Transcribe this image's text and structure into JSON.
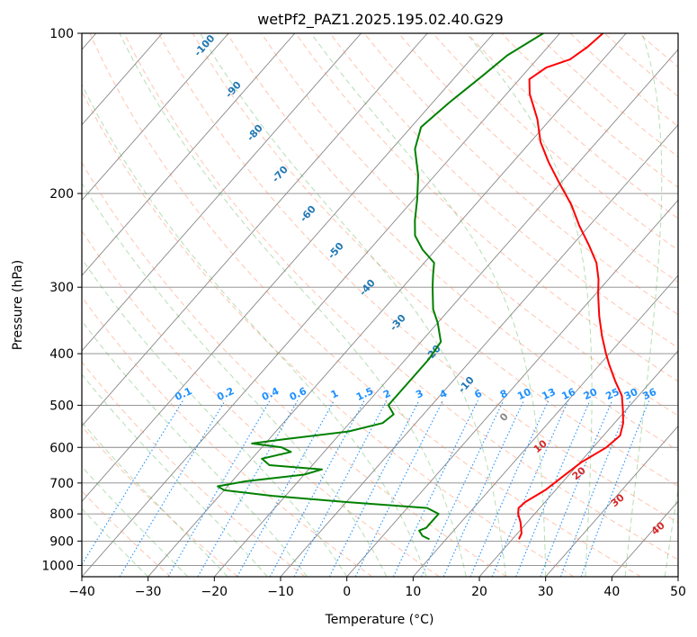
{
  "chart_data": {
    "type": "line",
    "subtype": "skew-t log-p diagram",
    "title": "wetPf2_PAZ1.2025.195.02.40.G29",
    "xlabel": "Temperature (°C)",
    "ylabel": "Pressure (hPa)",
    "xlim": [
      -40,
      50
    ],
    "ylim": [
      1050,
      100
    ],
    "y_scale": "log",
    "x_ticks": [
      -40,
      -30,
      -20,
      -10,
      0,
      10,
      20,
      30,
      40,
      50
    ],
    "y_ticks": [
      100,
      200,
      300,
      400,
      500,
      600,
      700,
      800,
      900,
      1000
    ],
    "x_tick_labels": [
      "−40",
      "−30",
      "−20",
      "−10",
      "0",
      "10",
      "20",
      "30",
      "40",
      "50"
    ],
    "y_tick_labels": [
      "100",
      "200",
      "300",
      "400",
      "500",
      "600",
      "700",
      "800",
      "900",
      "1000"
    ],
    "series": [
      {
        "role": "temperature",
        "color": "#ff0000",
        "points": [
          {
            "p": 893,
            "t": 21.0
          },
          {
            "p": 870,
            "t": 20.6
          },
          {
            "p": 830,
            "t": 19.0
          },
          {
            "p": 800,
            "t": 17.5
          },
          {
            "p": 780,
            "t": 16.8
          },
          {
            "p": 760,
            "t": 17.0
          },
          {
            "p": 720,
            "t": 18.5
          },
          {
            "p": 680,
            "t": 19.3
          },
          {
            "p": 640,
            "t": 20.2
          },
          {
            "p": 600,
            "t": 22.0
          },
          {
            "p": 570,
            "t": 22.5
          },
          {
            "p": 540,
            "t": 21.3
          },
          {
            "p": 510,
            "t": 19.5
          },
          {
            "p": 480,
            "t": 17.5
          },
          {
            "p": 450,
            "t": 14.5
          },
          {
            "p": 420,
            "t": 11.5
          },
          {
            "p": 400,
            "t": 9.5
          },
          {
            "p": 370,
            "t": 6.5
          },
          {
            "p": 340,
            "t": 3.5
          },
          {
            "p": 310,
            "t": 0.5
          },
          {
            "p": 290,
            "t": -1.5
          },
          {
            "p": 270,
            "t": -4.0
          },
          {
            "p": 250,
            "t": -7.5
          },
          {
            "p": 230,
            "t": -11.5
          },
          {
            "p": 210,
            "t": -15.5
          },
          {
            "p": 190,
            "t": -20.5
          },
          {
            "p": 175,
            "t": -24.5
          },
          {
            "p": 160,
            "t": -28.5
          },
          {
            "p": 145,
            "t": -32.0
          },
          {
            "p": 130,
            "t": -36.5
          },
          {
            "p": 122,
            "t": -38.5
          },
          {
            "p": 116,
            "t": -37.5
          },
          {
            "p": 112,
            "t": -35.0
          },
          {
            "p": 106,
            "t": -34.0
          },
          {
            "p": 100,
            "t": -33.5
          }
        ]
      },
      {
        "role": "dewpoint",
        "color": "#008000",
        "points": [
          {
            "p": 893,
            "t": 7.5
          },
          {
            "p": 880,
            "t": 6.0
          },
          {
            "p": 860,
            "t": 4.8
          },
          {
            "p": 850,
            "t": 5.5
          },
          {
            "p": 830,
            "t": 5.5
          },
          {
            "p": 800,
            "t": 5.5
          },
          {
            "p": 780,
            "t": 3.0
          },
          {
            "p": 760,
            "t": -10.0
          },
          {
            "p": 740,
            "t": -22.0
          },
          {
            "p": 722,
            "t": -30.0
          },
          {
            "p": 710,
            "t": -31.5
          },
          {
            "p": 695,
            "t": -28.0
          },
          {
            "p": 675,
            "t": -20.0
          },
          {
            "p": 660,
            "t": -18.0
          },
          {
            "p": 648,
            "t": -26.5
          },
          {
            "p": 630,
            "t": -28.5
          },
          {
            "p": 612,
            "t": -25.0
          },
          {
            "p": 600,
            "t": -27.0
          },
          {
            "p": 590,
            "t": -32.0
          },
          {
            "p": 580,
            "t": -28.0
          },
          {
            "p": 560,
            "t": -19.0
          },
          {
            "p": 540,
            "t": -15.0
          },
          {
            "p": 520,
            "t": -14.5
          },
          {
            "p": 500,
            "t": -16.5
          },
          {
            "p": 470,
            "t": -16.5
          },
          {
            "p": 440,
            "t": -16.5
          },
          {
            "p": 410,
            "t": -16.5
          },
          {
            "p": 380,
            "t": -17.0
          },
          {
            "p": 350,
            "t": -20.0
          },
          {
            "p": 330,
            "t": -22.5
          },
          {
            "p": 300,
            "t": -25.5
          },
          {
            "p": 285,
            "t": -27.0
          },
          {
            "p": 270,
            "t": -28.5
          },
          {
            "p": 255,
            "t": -32.0
          },
          {
            "p": 240,
            "t": -35.0
          },
          {
            "p": 225,
            "t": -37.0
          },
          {
            "p": 205,
            "t": -39.5
          },
          {
            "p": 185,
            "t": -42.5
          },
          {
            "p": 165,
            "t": -46.5
          },
          {
            "p": 150,
            "t": -48.5
          },
          {
            "p": 135,
            "t": -47.5
          },
          {
            "p": 120,
            "t": -46.0
          },
          {
            "p": 110,
            "t": -45.0
          },
          {
            "p": 100,
            "t": -42.5
          }
        ]
      }
    ],
    "background_lines": {
      "isotherms": {
        "color": "#888888",
        "spacing_c": 10
      },
      "dry_adiabats": {
        "color": "#ff7f50",
        "style": "dashed"
      },
      "moist_adiabats": {
        "color": "#2ca02c",
        "style": "dashed"
      },
      "mixing_ratio": {
        "color": "#1e90ff",
        "style": "dotted"
      },
      "isobars": {
        "color": "#888888"
      }
    },
    "mixing_ratio_labels": [
      "0.1",
      "0.2",
      "0.4",
      "0.6",
      "1",
      "1.5",
      "2",
      "3",
      "4",
      "6",
      "8",
      "10",
      "13",
      "16",
      "20",
      "25",
      "30",
      "36"
    ],
    "mixing_ratio_values": [
      0.1,
      0.2,
      0.4,
      0.6,
      1,
      1.5,
      2,
      3,
      4,
      6,
      8,
      10,
      13,
      16,
      20,
      25,
      30,
      36
    ],
    "blue_labels": [
      "-100",
      "-90",
      "-80",
      "-70",
      "-60",
      "-50",
      "-40",
      "-30",
      "-20",
      "-10",
      "0"
    ],
    "blue_label_values": [
      -100,
      -90,
      -80,
      -70,
      -60,
      -50,
      -40,
      -30,
      -20,
      -10,
      0
    ],
    "red_labels": [
      "10",
      "20",
      "30",
      "40"
    ],
    "red_label_values": [
      10,
      20,
      30,
      40
    ],
    "zero_label": "0"
  }
}
